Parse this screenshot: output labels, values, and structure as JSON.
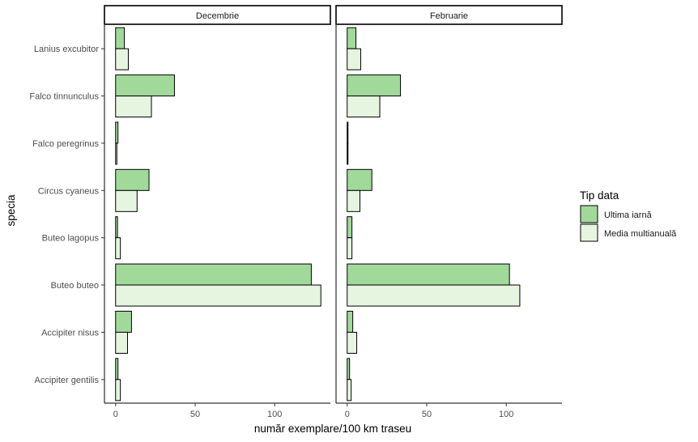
{
  "chart_data": {
    "type": "bar",
    "orientation": "horizontal",
    "facets": [
      "Decembrie",
      "Februarie"
    ],
    "categories": [
      "Lanius excubitor",
      "Falco tinnunculus",
      "Falco peregrinus",
      "Circus cyaneus",
      "Buteo lagopus",
      "Buteo buteo",
      "Accipiter nisus",
      "Accipiter gentilis"
    ],
    "series": [
      {
        "name": "Ultima iarnă",
        "color": "#a1d99b",
        "values": {
          "Decembrie": [
            5.5,
            37,
            1.5,
            21,
            1.2,
            123,
            10,
            1.5
          ],
          "Februarie": [
            5.5,
            33.5,
            0.5,
            15.5,
            3,
            102,
            3.5,
            1.5
          ]
        }
      },
      {
        "name": "Media multianuală",
        "color": "#e5f5e0",
        "values": {
          "Decembrie": [
            8,
            22.5,
            0.8,
            13.5,
            3,
            129,
            7.5,
            3
          ],
          "Februarie": [
            8.5,
            20.5,
            0.5,
            8,
            3,
            108.5,
            6,
            2.5
          ]
        }
      }
    ],
    "xlabel": "număr exemplare/100 km traseu",
    "ylabel": "specia",
    "xlim": [
      -7,
      135
    ],
    "xticks": [
      0,
      50,
      100
    ],
    "legend": {
      "title": "Tip data",
      "position": "right"
    },
    "grid": false
  }
}
